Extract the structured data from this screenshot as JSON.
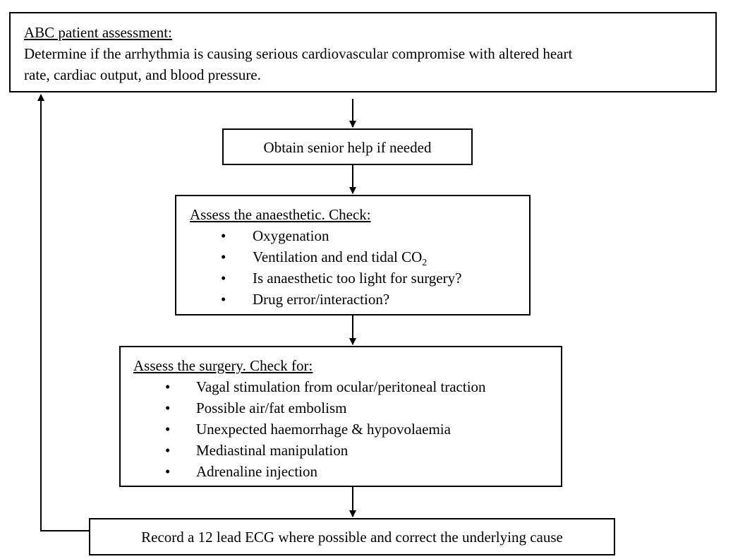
{
  "box1": {
    "heading": "ABC patient assessment:",
    "line1": "Determine if the arrhythmia is causing serious cardiovascular compromise with altered heart",
    "line2": "rate, cardiac output, and blood pressure."
  },
  "box2": {
    "text": "Obtain senior help if needed"
  },
  "box3": {
    "heading": "Assess the anaesthetic. Check:",
    "items": [
      "Oxygenation",
      "Ventilation and end tidal CO",
      "Is anaesthetic too light for surgery?",
      "Drug error/interaction?"
    ],
    "co2_subscript": "2"
  },
  "box4": {
    "heading": "Assess the surgery. Check for:",
    "items": [
      "Vagal stimulation from ocular/peritoneal traction",
      "Possible air/fat embolism",
      "Unexpected haemorrhage & hypovolaemia",
      "Mediastinal manipulation",
      "Adrenaline injection"
    ]
  },
  "box5": {
    "text": "Record a 12 lead ECG where possible and correct the underlying cause"
  },
  "bullet_glyph": "•"
}
